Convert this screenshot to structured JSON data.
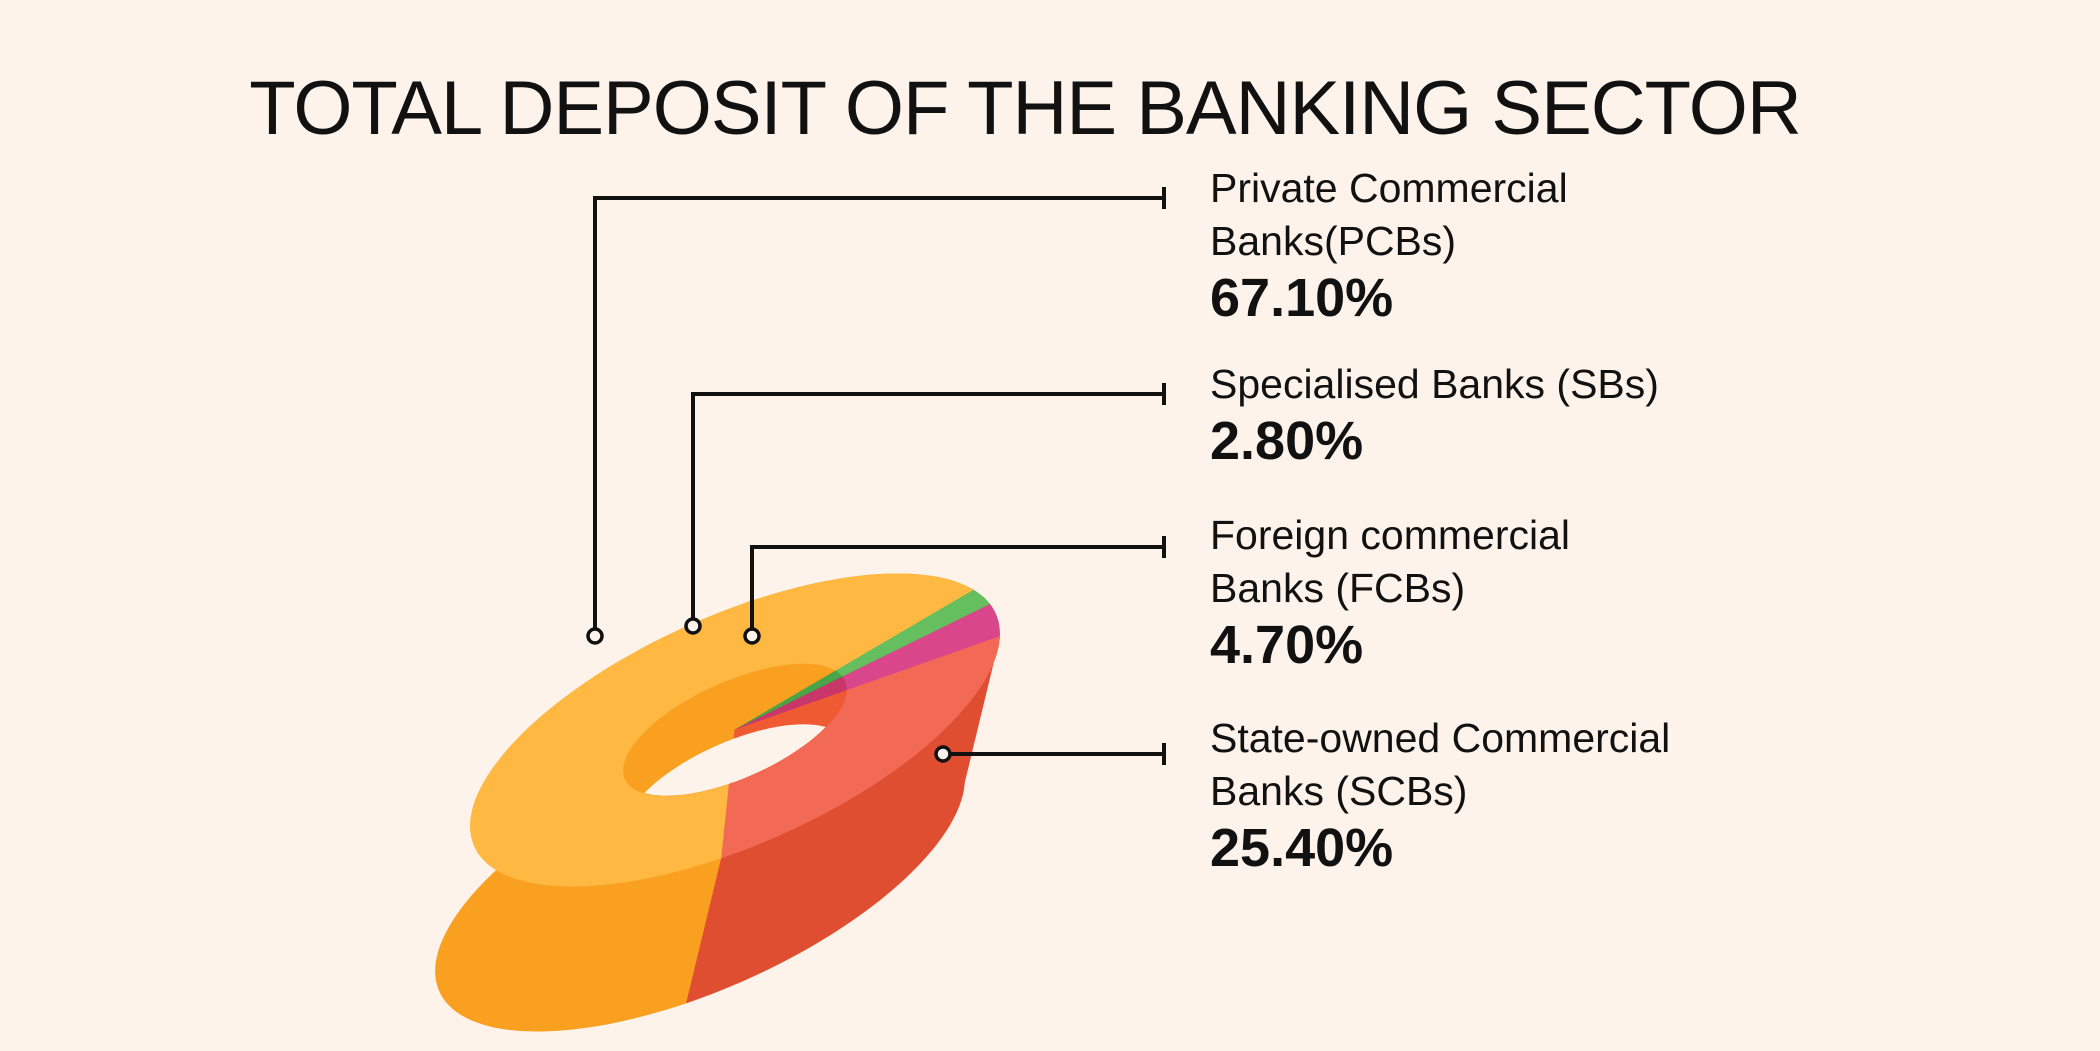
{
  "chart_data": {
    "type": "pie",
    "variant": "3d-donut",
    "title": "TOTAL DEPOSIT OF THE BANKING SECTOR",
    "legend_placement": "right",
    "value_suffix": "%",
    "slices": [
      {
        "key": "pcb",
        "label_lines": [
          "Private Commercial",
          "Banks(PCBs)"
        ],
        "value": 67.1,
        "value_label": "67.10%",
        "top_color": "#ffb841",
        "side_color": "#f9a020",
        "inner_color": "#f9a020"
      },
      {
        "key": "sb",
        "label_lines": [
          "Specialised Banks (SBs)"
        ],
        "value": 2.8,
        "value_label": "2.80%",
        "top_color": "#66bf5e",
        "side_color": "#48a548",
        "inner_color": "#48a548"
      },
      {
        "key": "fcb",
        "label_lines": [
          "Foreign commercial",
          "Banks (FCBs)"
        ],
        "value": 4.7,
        "value_label": "4.70%",
        "top_color": "#d9468a",
        "side_color": "#c93669",
        "inner_color": "#c93669"
      },
      {
        "key": "scb",
        "label_lines": [
          "State-owned Commercial",
          "Banks (SCBs)"
        ],
        "value": 25.4,
        "value_label": "25.40%",
        "top_color": "#f26a55",
        "side_color": "#e04e32",
        "inner_color": "#f05a32"
      }
    ]
  }
}
